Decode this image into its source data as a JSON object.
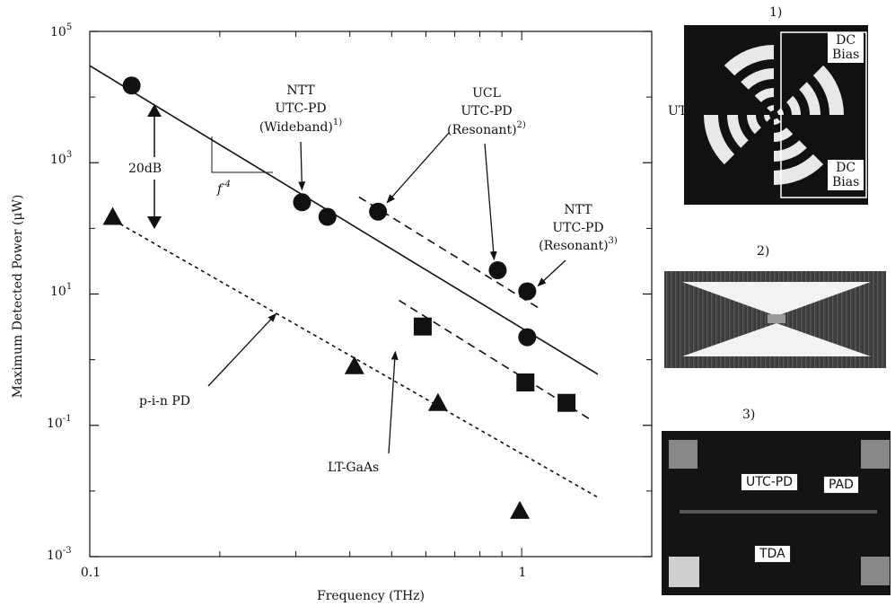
{
  "chart_data": {
    "type": "scatter",
    "xlabel": "Frequency (THz)",
    "ylabel": "Maximum Detected Power (μW)",
    "xscale": "log",
    "yscale": "log",
    "xlim": [
      0.1,
      2.0
    ],
    "ylim": [
      0.001,
      100000
    ],
    "x_ticks": [
      {
        "value": 0.1,
        "label": "0.1"
      },
      {
        "value": 1,
        "label": "1"
      }
    ],
    "y_ticks": [
      {
        "value": 100000,
        "base": "10",
        "exp": "5"
      },
      {
        "value": 1000,
        "base": "10",
        "exp": "3"
      },
      {
        "value": 10,
        "base": "10",
        "exp": "1"
      },
      {
        "value": 0.1,
        "base": "10",
        "exp": "-1"
      },
      {
        "value": 0.001,
        "base": "10",
        "exp": "-3"
      }
    ],
    "series": [
      {
        "marker": "circle",
        "points": [
          [
            0.125,
            15000
          ],
          [
            0.31,
            250
          ],
          [
            0.355,
            150
          ],
          [
            0.465,
            180
          ],
          [
            0.88,
            23
          ],
          [
            1.03,
            11
          ],
          [
            1.03,
            2.2
          ]
        ]
      },
      {
        "marker": "square",
        "points": [
          [
            0.59,
            3.2
          ],
          [
            1.02,
            0.45
          ],
          [
            1.27,
            0.22
          ]
        ]
      },
      {
        "marker": "triangle",
        "points": [
          [
            0.113,
            150
          ],
          [
            0.41,
            0.8
          ],
          [
            0.64,
            0.22
          ],
          [
            0.99,
            0.005
          ]
        ]
      }
    ],
    "lines": [
      {
        "style": "solid",
        "points": [
          [
            0.1,
            30000
          ],
          [
            1.5,
            0.6
          ]
        ]
      },
      {
        "style": "dashed",
        "points": [
          [
            0.42,
            300
          ],
          [
            1.1,
            6
          ]
        ]
      },
      {
        "style": "dashed",
        "points": [
          [
            0.52,
            8
          ],
          [
            1.45,
            0.12
          ]
        ]
      },
      {
        "style": "dotted",
        "points": [
          [
            0.11,
            150
          ],
          [
            1.5,
            0.008
          ]
        ]
      }
    ],
    "annotations": {
      "ntt_wideband": [
        "NTT",
        "UTC-PD",
        "(Wideband)"
      ],
      "ntt_wideband_sup": "1)",
      "ucl_resonant": [
        "UCL",
        "UTC-PD",
        "(Resonant)"
      ],
      "ucl_resonant_sup": "2)",
      "ntt_resonant": [
        "NTT",
        "UTC-PD",
        "(Resonant)"
      ],
      "ntt_resonant_sup": "3)",
      "gap": "20dB",
      "slope": "f",
      "slope_exp": "-4",
      "pin": "p-i-n PD",
      "ltgaas": "LT-GaAs"
    }
  },
  "insets": {
    "panel1": {
      "number": "1)",
      "dc_bias_top": [
        "DC",
        "Bias"
      ],
      "dc_bias_bottom": [
        "DC",
        "Bias"
      ],
      "side_text": "UT"
    },
    "panel2": {
      "number": "2)"
    },
    "panel3": {
      "number": "3)",
      "utc_pd": "UTC-PD",
      "pad": "PAD",
      "tda": "TDA"
    }
  }
}
